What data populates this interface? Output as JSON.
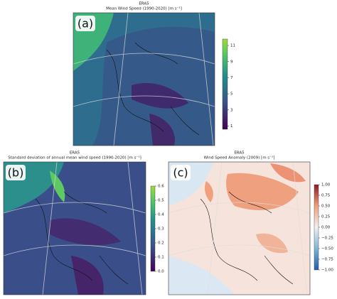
{
  "panels": [
    {
      "label": "(a)",
      "title": "ERA5",
      "subtitle": "Mean Wind Speed (1990-2020) [m s⁻¹]",
      "colorbar": {
        "lim": [
          0.6,
          11.8
        ],
        "ticks": [
          1,
          3,
          5,
          7,
          9,
          11
        ]
      }
    },
    {
      "label": "(b)",
      "title": "ERA5",
      "subtitle": "Standard deviation of annual mean wind speed (1990-2020) [m s⁻¹]",
      "colorbar": {
        "lim": [
          0,
          0.6
        ],
        "ticks": [
          {
            "value": 0,
            "label": "0.0"
          },
          0.1,
          0.2,
          0.3,
          0.4,
          0.5,
          0.6
        ]
      }
    },
    {
      "label": "(c)",
      "title": "ERA5",
      "subtitle": "Wind Speed Anomaly (2009) [m s⁻¹]",
      "colorbar": {
        "lim": [
          -1,
          1
        ],
        "ticks": [
          {
            "value": -1,
            "label": "−1.00"
          },
          {
            "value": -0.75,
            "label": "−0.75"
          },
          {
            "value": -0.5,
            "label": "−0.50"
          },
          {
            "value": -0.25,
            "label": "−0.25"
          },
          {
            "value": 0,
            "label": "0.00"
          },
          0.25,
          {
            "value": 0.5,
            "label": "0.50"
          },
          0.75,
          {
            "value": 1,
            "label": "1.00"
          }
        ]
      }
    }
  ]
}
